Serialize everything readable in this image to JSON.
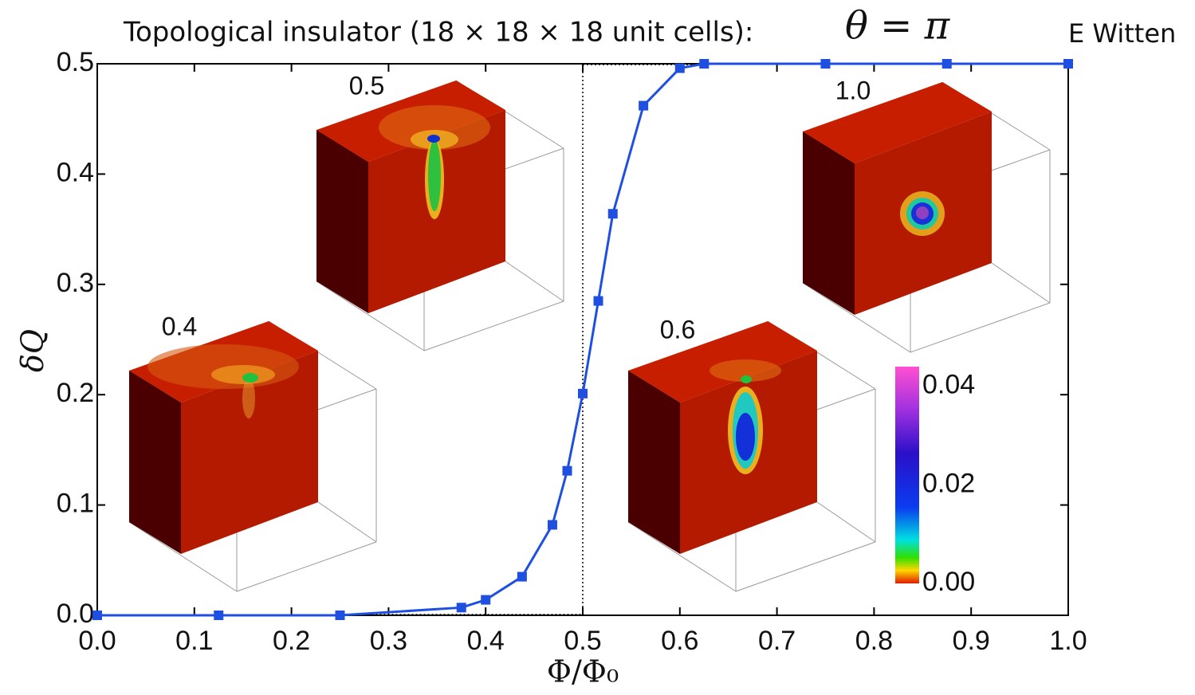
{
  "chart_data": {
    "type": "line",
    "title": "Topological insulator (18 × 18 × 18 unit cells):",
    "title_math": "θ = π",
    "credit": "E Witten",
    "xlabel": "Φ/Φ₀",
    "ylabel": "δQ",
    "x": [
      0,
      0.125,
      0.25,
      0.375,
      0.4,
      0.4375,
      0.46875,
      0.484,
      0.5,
      0.516,
      0.531,
      0.5625,
      0.6,
      0.625,
      0.75,
      0.875,
      1.0
    ],
    "series": [
      {
        "color": "#1f4fe0",
        "values": [
          0,
          0,
          0,
          0.007,
          0.014,
          0.035,
          0.082,
          0.131,
          0.201,
          0.285,
          0.364,
          0.462,
          0.496,
          0.5,
          0.5,
          0.5,
          0.5
        ]
      }
    ],
    "xlim": [
      0,
      1
    ],
    "ylim": [
      0,
      0.5
    ],
    "xticks": [
      {
        "value": 0,
        "label": "0.0"
      },
      0.1,
      0.2,
      0.3,
      0.4,
      0.5,
      0.6,
      0.7,
      0.8,
      0.9,
      {
        "value": 1,
        "label": "1.0"
      }
    ],
    "yticks": [
      {
        "value": 0,
        "label": "0.0"
      },
      0.1,
      0.2,
      0.3,
      0.4,
      0.5
    ],
    "insets": [
      {
        "label": "0.4"
      },
      {
        "label": "0.5"
      },
      {
        "label": "0.6"
      },
      {
        "label": "1.0"
      }
    ],
    "colorbar": {
      "lim": [
        0,
        0.044
      ],
      "ticks": [
        {
          "value": 0,
          "label": "0.00"
        },
        0.02,
        0.04
      ]
    }
  }
}
